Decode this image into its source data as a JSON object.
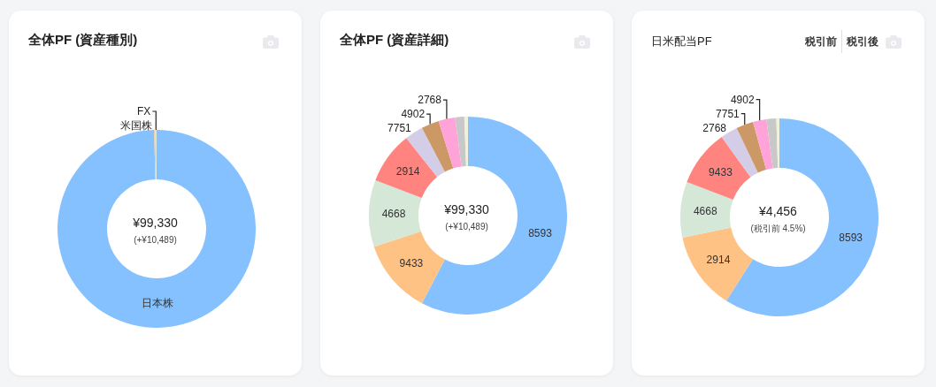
{
  "chart_data": [
    {
      "type": "donut",
      "title": "全体PF (資産種別)",
      "categories": [
        "日本株",
        "米国株",
        "FX"
      ],
      "values": [
        99.6,
        0.2,
        0.2
      ],
      "colors": [
        "#85c1ff",
        "#ffc285",
        "#d5e8d8"
      ],
      "annotations": [
        "¥99,330",
        "(+¥10,489)"
      ]
    },
    {
      "type": "donut",
      "title": "全体PF (資産詳細)",
      "categories": [
        "8593",
        "9433",
        "4668",
        "2914",
        "7751",
        "4902",
        "2768",
        null,
        null
      ],
      "values": [
        57.7,
        12.2,
        10.9,
        8.5,
        3.0,
        2.9,
        2.7,
        1.5,
        0.6
      ],
      "colors": [
        "#85c1ff",
        "#ffc285",
        "#d5e8d8",
        "#ff8480",
        "#d4cde8",
        "#cc9966",
        "#ffa3d8",
        "#c8c8c8",
        "#eef2dc"
      ],
      "annotations": [
        "¥99,330",
        "(+¥10,489)"
      ]
    },
    {
      "type": "donut",
      "title": "日米配当PF",
      "categories": [
        "8593",
        "2914",
        "4668",
        "9433",
        "2768",
        "7751",
        "4902",
        null,
        null
      ],
      "values": [
        59.0,
        12.7,
        9.1,
        9.3,
        2.8,
        2.8,
        2.2,
        1.6,
        0.5
      ],
      "colors": [
        "#85c1ff",
        "#ffc285",
        "#d5e8d8",
        "#ff8480",
        "#d4cde8",
        "#cc9966",
        "#ffa3d8",
        "#c8c8c8",
        "#eef2dc"
      ],
      "annotations": [
        "¥4,456",
        "(税引前 4.5%)",
        "税引前",
        "税引後"
      ]
    }
  ]
}
